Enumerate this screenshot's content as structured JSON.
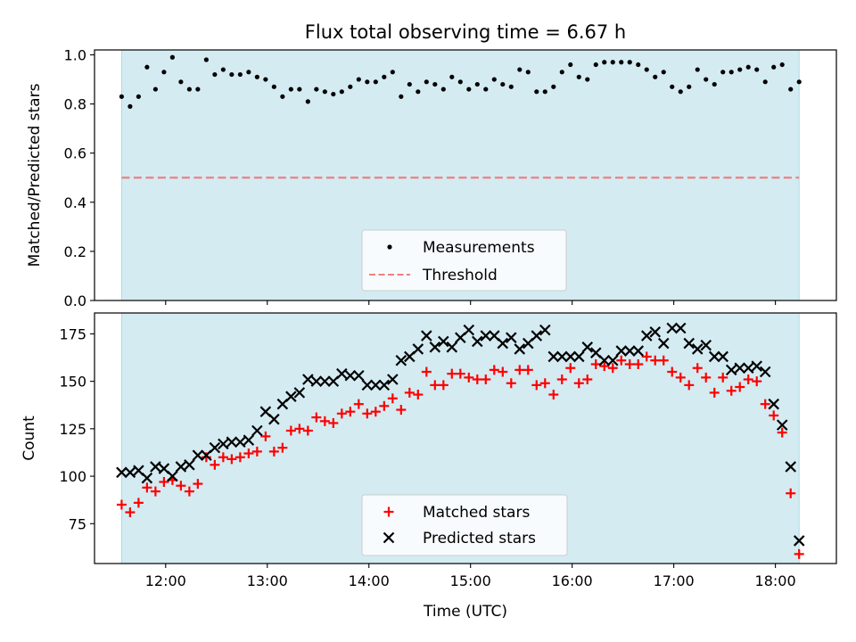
{
  "title": "Flux total observing time = 6.67 h",
  "colors": {
    "observing_band": "#add8e6",
    "measurement": "#000000",
    "threshold": "#f08080",
    "matched": "#ff0000",
    "predicted": "#000000"
  },
  "chart_data": [
    {
      "type": "scatter",
      "panel": "top",
      "xlabel": "",
      "ylabel": "Matched/Predicted stars",
      "xlim": [
        "11:18",
        "18:36"
      ],
      "ylim": [
        0,
        1.02
      ],
      "yticks": [
        0.0,
        0.2,
        0.4,
        0.6,
        0.8,
        1.0
      ],
      "ytick_labels": [
        "0.0",
        "0.2",
        "0.4",
        "0.6",
        "0.8",
        "1.0"
      ],
      "grid": false,
      "legend_position": "lower-center",
      "observing_window": [
        "11:34",
        "18:14"
      ],
      "threshold": {
        "name": "Threshold",
        "value": 0.5,
        "style": "dashed"
      },
      "series": [
        {
          "name": "Measurements",
          "marker": "dot",
          "x": [
            "11:34",
            "11:39",
            "11:44",
            "11:49",
            "11:54",
            "11:59",
            "12:04",
            "12:09",
            "12:14",
            "12:19",
            "12:24",
            "12:29",
            "12:34",
            "12:39",
            "12:44",
            "12:49",
            "12:54",
            "12:59",
            "13:04",
            "13:09",
            "13:14",
            "13:19",
            "13:24",
            "13:29",
            "13:34",
            "13:39",
            "13:44",
            "13:49",
            "13:54",
            "13:59",
            "14:04",
            "14:09",
            "14:14",
            "14:19",
            "14:24",
            "14:29",
            "14:34",
            "14:39",
            "14:44",
            "14:49",
            "14:54",
            "14:59",
            "15:04",
            "15:09",
            "15:14",
            "15:19",
            "15:24",
            "15:29",
            "15:34",
            "15:39",
            "15:44",
            "15:49",
            "15:54",
            "15:59",
            "16:04",
            "16:09",
            "16:14",
            "16:19",
            "16:24",
            "16:29",
            "16:34",
            "16:39",
            "16:44",
            "16:49",
            "16:54",
            "16:59",
            "17:04",
            "17:09",
            "17:14",
            "17:19",
            "17:24",
            "17:29",
            "17:34",
            "17:39",
            "17:44",
            "17:49",
            "17:54",
            "17:59",
            "18:04",
            "18:09",
            "18:14"
          ],
          "y": [
            0.83,
            0.79,
            0.83,
            0.95,
            0.86,
            0.93,
            0.99,
            0.89,
            0.86,
            0.86,
            0.98,
            0.92,
            0.94,
            0.92,
            0.92,
            0.93,
            0.91,
            0.9,
            0.87,
            0.83,
            0.86,
            0.86,
            0.81,
            0.86,
            0.85,
            0.84,
            0.85,
            0.87,
            0.9,
            0.89,
            0.89,
            0.91,
            0.93,
            0.83,
            0.88,
            0.85,
            0.89,
            0.88,
            0.86,
            0.91,
            0.89,
            0.86,
            0.88,
            0.86,
            0.9,
            0.88,
            0.87,
            0.94,
            0.93,
            0.85,
            0.85,
            0.87,
            0.93,
            0.96,
            0.91,
            0.9,
            0.96,
            0.97,
            0.97,
            0.97,
            0.97,
            0.96,
            0.94,
            0.91,
            0.93,
            0.87,
            0.85,
            0.87,
            0.94,
            0.9,
            0.88,
            0.93,
            0.93,
            0.94,
            0.95,
            0.94,
            0.89,
            0.95,
            0.96,
            0.86,
            0.89
          ]
        }
      ]
    },
    {
      "type": "scatter",
      "panel": "bottom",
      "xlabel": "Time (UTC)",
      "ylabel": "Count",
      "xlim": [
        "11:18",
        "18:36"
      ],
      "ylim": [
        54,
        186
      ],
      "xticks": [
        "12:00",
        "13:00",
        "14:00",
        "15:00",
        "16:00",
        "17:00",
        "18:00"
      ],
      "yticks": [
        75,
        100,
        125,
        150,
        175
      ],
      "ytick_labels": [
        "75",
        "100",
        "125",
        "150",
        "175"
      ],
      "grid": false,
      "legend_position": "lower-center",
      "observing_window": [
        "11:34",
        "18:14"
      ],
      "series": [
        {
          "name": "Matched stars",
          "marker": "plus",
          "x": [
            "11:34",
            "11:39",
            "11:44",
            "11:49",
            "11:54",
            "11:59",
            "12:04",
            "12:09",
            "12:14",
            "12:19",
            "12:24",
            "12:29",
            "12:34",
            "12:39",
            "12:44",
            "12:49",
            "12:54",
            "12:59",
            "13:04",
            "13:09",
            "13:14",
            "13:19",
            "13:24",
            "13:29",
            "13:34",
            "13:39",
            "13:44",
            "13:49",
            "13:54",
            "13:59",
            "14:04",
            "14:09",
            "14:14",
            "14:19",
            "14:24",
            "14:29",
            "14:34",
            "14:39",
            "14:44",
            "14:49",
            "14:54",
            "14:59",
            "15:04",
            "15:09",
            "15:14",
            "15:19",
            "15:24",
            "15:29",
            "15:34",
            "15:39",
            "15:44",
            "15:49",
            "15:54",
            "15:59",
            "16:04",
            "16:09",
            "16:14",
            "16:19",
            "16:24",
            "16:29",
            "16:34",
            "16:39",
            "16:44",
            "16:49",
            "16:54",
            "16:59",
            "17:04",
            "17:09",
            "17:14",
            "17:19",
            "17:24",
            "17:29",
            "17:34",
            "17:39",
            "17:44",
            "17:49",
            "17:54",
            "17:59",
            "18:04",
            "18:09",
            "18:14"
          ],
          "y": [
            85,
            81,
            86,
            94,
            92,
            97,
            98,
            95,
            92,
            96,
            110,
            106,
            110,
            109,
            110,
            112,
            113,
            121,
            113,
            115,
            124,
            125,
            124,
            131,
            129,
            128,
            133,
            134,
            138,
            133,
            134,
            137,
            141,
            135,
            144,
            143,
            155,
            148,
            148,
            154,
            154,
            152,
            151,
            151,
            156,
            155,
            149,
            156,
            156,
            148,
            149,
            143,
            151,
            157,
            149,
            151,
            159,
            158,
            157,
            161,
            159,
            159,
            163,
            161,
            161,
            155,
            152,
            148,
            157,
            152,
            144,
            152,
            145,
            147,
            151,
            150,
            138,
            132,
            123,
            91,
            59
          ]
        },
        {
          "name": "Predicted stars",
          "marker": "x",
          "x": [
            "11:34",
            "11:39",
            "11:44",
            "11:49",
            "11:54",
            "11:59",
            "12:04",
            "12:09",
            "12:14",
            "12:19",
            "12:24",
            "12:29",
            "12:34",
            "12:39",
            "12:44",
            "12:49",
            "12:54",
            "12:59",
            "13:04",
            "13:09",
            "13:14",
            "13:19",
            "13:24",
            "13:29",
            "13:34",
            "13:39",
            "13:44",
            "13:49",
            "13:54",
            "13:59",
            "14:04",
            "14:09",
            "14:14",
            "14:19",
            "14:24",
            "14:29",
            "14:34",
            "14:39",
            "14:44",
            "14:49",
            "14:54",
            "14:59",
            "15:04",
            "15:09",
            "15:14",
            "15:19",
            "15:24",
            "15:29",
            "15:34",
            "15:39",
            "15:44",
            "15:49",
            "15:54",
            "15:59",
            "16:04",
            "16:09",
            "16:14",
            "16:19",
            "16:24",
            "16:29",
            "16:34",
            "16:39",
            "16:44",
            "16:49",
            "16:54",
            "16:59",
            "17:04",
            "17:09",
            "17:14",
            "17:19",
            "17:24",
            "17:29",
            "17:34",
            "17:39",
            "17:44",
            "17:49",
            "17:54",
            "17:59",
            "18:04",
            "18:09",
            "18:14"
          ],
          "y": [
            102,
            102,
            103,
            99,
            105,
            104,
            100,
            105,
            106,
            111,
            111,
            115,
            117,
            118,
            118,
            119,
            124,
            134,
            130,
            138,
            142,
            144,
            151,
            150,
            150,
            150,
            154,
            153,
            153,
            148,
            148,
            148,
            151,
            161,
            163,
            167,
            174,
            168,
            171,
            168,
            173,
            177,
            171,
            174,
            174,
            170,
            173,
            167,
            170,
            174,
            177,
            163,
            163,
            163,
            163,
            168,
            165,
            161,
            161,
            166,
            166,
            166,
            174,
            176,
            170,
            178,
            178,
            170,
            167,
            169,
            163,
            163,
            156,
            157,
            157,
            158,
            155,
            138,
            127,
            105,
            66
          ]
        }
      ]
    }
  ]
}
